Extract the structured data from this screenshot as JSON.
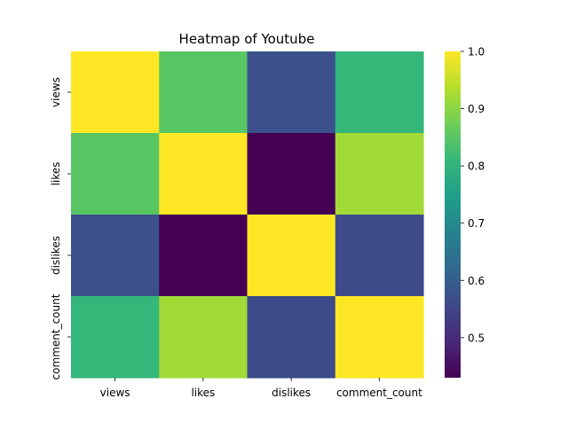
{
  "chart_data": {
    "type": "heatmap",
    "title": "Heatmap of Youtube",
    "xlabel": "",
    "ylabel": "",
    "x_categories": [
      "views",
      "likes",
      "dislikes",
      "comment_count"
    ],
    "y_categories": [
      "views",
      "likes",
      "dislikes",
      "comment_count"
    ],
    "values": [
      [
        1.0,
        0.85,
        0.57,
        0.81
      ],
      [
        0.85,
        1.0,
        0.43,
        0.92
      ],
      [
        0.57,
        0.43,
        1.0,
        0.56
      ],
      [
        0.81,
        0.92,
        0.56,
        1.0
      ]
    ],
    "colorbar": {
      "vmin": 0.43,
      "vmax": 1.0,
      "ticks": [
        "0.5",
        "0.6",
        "0.7",
        "0.8",
        "0.9",
        "1.0"
      ],
      "colormap": "viridis"
    },
    "colormap_stops": [
      "#440154",
      "#482878",
      "#3e4989",
      "#31688e",
      "#26828e",
      "#1f9e89",
      "#35b779",
      "#6ece58",
      "#b5de2b",
      "#fde725"
    ]
  }
}
